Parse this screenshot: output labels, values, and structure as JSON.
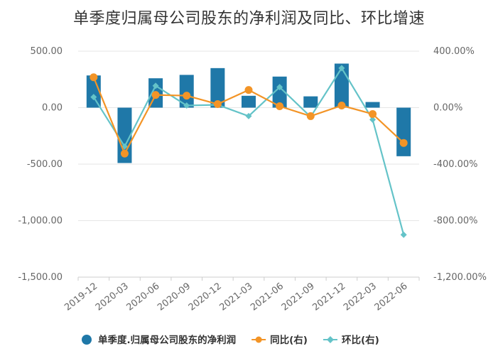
{
  "chart_data": {
    "type": "bar",
    "title": "单季度归属母公司股东的净利润及同比、环比增速",
    "categories": [
      "2019-12",
      "2020-03",
      "2020-06",
      "2020-09",
      "2020-12",
      "2021-03",
      "2021-06",
      "2021-09",
      "2021-12",
      "2022-03",
      "2022-06"
    ],
    "series": [
      {
        "name": "单季度.归属母公司股东的净利润",
        "kind": "bar",
        "axis": "left",
        "color": "#1f78a8",
        "values": [
          285,
          -490,
          260,
          290,
          350,
          105,
          275,
          100,
          390,
          50,
          -430
        ]
      },
      {
        "name": "同比(右)",
        "kind": "line",
        "axis": "right",
        "color": "#f39426",
        "marker": "circle",
        "values": [
          215,
          -325,
          90,
          85,
          25,
          125,
          10,
          -60,
          15,
          -45,
          -250
        ]
      },
      {
        "name": "环比(右)",
        "kind": "line",
        "axis": "right",
        "color": "#64c3c8",
        "marker": "diamond",
        "values": [
          75,
          -275,
          155,
          15,
          20,
          -60,
          145,
          -65,
          280,
          -85,
          -900
        ]
      }
    ],
    "left_axis": {
      "ylim": [
        -1500,
        500
      ],
      "ticks": [
        500,
        0,
        -500,
        -1000,
        -1500
      ],
      "tick_labels": [
        "500.00",
        "0.00",
        "-500.00",
        "-1,000.00",
        "-1,500.00"
      ]
    },
    "right_axis": {
      "ylim": [
        -1200,
        400
      ],
      "ticks": [
        400,
        0,
        -400,
        -800,
        -1200
      ],
      "tick_labels": [
        "400.00%",
        "0.00%",
        "-400.00%",
        "-800.00%",
        "-1,200.00%"
      ]
    },
    "grid": "horizontal",
    "legend_position": "bottom",
    "legend": [
      "单季度.归属母公司股东的净利润",
      "同比(右)",
      "环比(右)"
    ]
  },
  "colors": {
    "bar": "#1f78a8",
    "yoy": "#f39426",
    "qoq": "#64c3c8",
    "grid": "#e6e6e6",
    "axis_text": "#666666"
  }
}
